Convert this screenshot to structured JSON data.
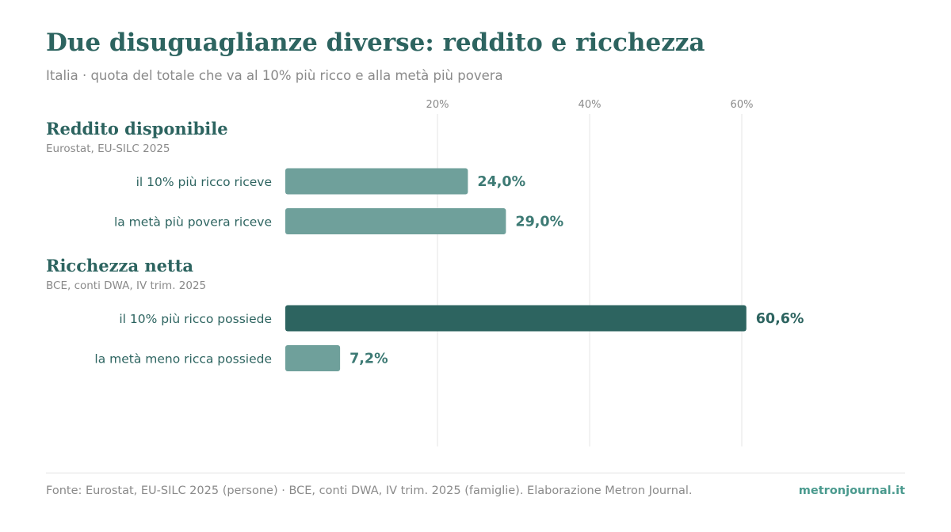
{
  "title": "Due disuguaglianze diverse: reddito e ricchezza",
  "subtitle": "Italia · quota del totale che va al 10% più ricco e alla metà più povera",
  "colors": {
    "title": "#2d6460",
    "bar_light": "#6fa09b",
    "bar_dark": "#2d6460",
    "value_label": "#3d7a74",
    "grid": "#e6e6e6",
    "muted": "#8a8a8a",
    "brand": "#4a9a8e"
  },
  "chart_data": {
    "type": "bar",
    "orientation": "horizontal",
    "xlim": [
      0,
      80
    ],
    "ticks": [
      {
        "value": 20,
        "label": "20%"
      },
      {
        "value": 40,
        "label": "40%"
      },
      {
        "value": 60,
        "label": "60%"
      }
    ],
    "grid": true,
    "groups": [
      {
        "title": "Reddito disponibile",
        "source": "Eurostat, EU-SILC 2025",
        "bars": [
          {
            "label": "il 10% più ricco riceve",
            "value": 24.0,
            "value_label": "24,0%",
            "highlight": false
          },
          {
            "label": "la metà più povera riceve",
            "value": 29.0,
            "value_label": "29,0%",
            "highlight": false
          }
        ]
      },
      {
        "title": "Ricchezza netta",
        "source": "BCE, conti DWA, IV trim. 2025",
        "bars": [
          {
            "label": "il 10% più ricco possiede",
            "value": 60.6,
            "value_label": "60,6%",
            "highlight": true
          },
          {
            "label": "la metà meno ricca possiede",
            "value": 7.2,
            "value_label": "7,2%",
            "highlight": false
          }
        ]
      }
    ]
  },
  "footer": {
    "source": "Fonte: Eurostat, EU-SILC 2025 (persone) · BCE, conti DWA, IV trim. 2025 (famiglie). Elaborazione Metron Journal.",
    "brand": "metronjournal.it"
  }
}
